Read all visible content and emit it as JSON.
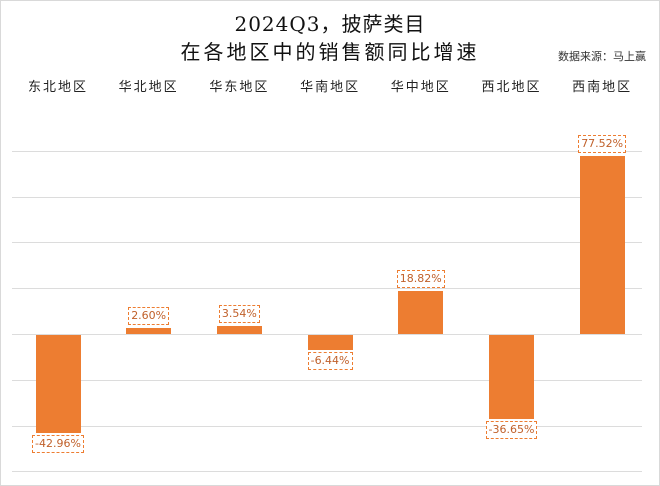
{
  "title": {
    "line1": "2024Q3，披萨类目",
    "line2": "在各地区中的销售额同比增速"
  },
  "source": "数据来源：马上赢",
  "colors": {
    "bar": "#ed7d31",
    "label": "#c0602a",
    "grid": "#dcdcdc"
  },
  "chart_data": {
    "type": "bar",
    "title": "2024Q3，披萨类目 在各地区中的销售额同比增速",
    "categories": [
      "东北地区",
      "华北地区",
      "华东地区",
      "华南地区",
      "华中地区",
      "西北地区",
      "西南地区"
    ],
    "values": [
      -42.96,
      2.6,
      3.54,
      -6.44,
      18.82,
      -36.65,
      77.52
    ],
    "value_labels": [
      "-42.96%",
      "2.60%",
      "3.54%",
      "-6.44%",
      "18.82%",
      "-36.65%",
      "77.52%"
    ],
    "xlabel": "",
    "ylabel": "",
    "ylim": [
      -60,
      100
    ],
    "grid": true,
    "legend": "none",
    "annotations": [
      "数据来源：马上赢"
    ]
  }
}
